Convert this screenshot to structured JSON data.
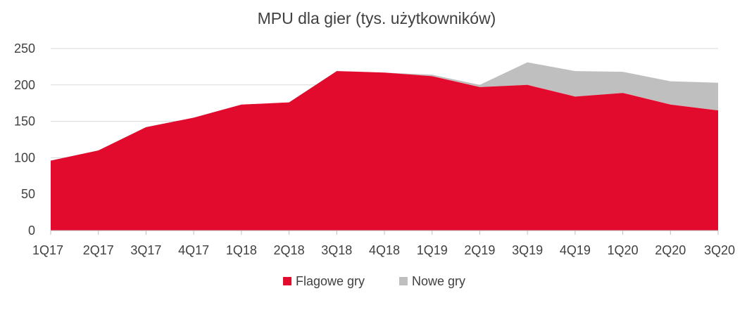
{
  "chart_data": {
    "type": "area",
    "stacked": true,
    "title": "MPU dla gier (tys. użytkowników)",
    "xlabel": "",
    "ylabel": "",
    "categories": [
      "1Q17",
      "2Q17",
      "3Q17",
      "4Q17",
      "1Q18",
      "2Q18",
      "3Q18",
      "4Q18",
      "1Q19",
      "2Q19",
      "3Q19",
      "4Q19",
      "1Q20",
      "2Q20",
      "3Q20"
    ],
    "ylim": [
      0,
      250
    ],
    "yticks": [
      "0",
      "50",
      "100",
      "150",
      "200",
      "250"
    ],
    "grid": true,
    "legend_position": "bottom",
    "series": [
      {
        "name": "Flagowe gry",
        "color": "#e30b2d",
        "values": [
          96,
          110,
          142,
          155,
          173,
          176,
          219,
          217,
          212,
          197,
          200,
          184,
          189,
          173,
          165
        ]
      },
      {
        "name": "Nowe gry",
        "color": "#bfbfbf",
        "values": [
          0,
          0,
          0,
          0,
          0,
          0,
          0,
          0,
          2,
          3,
          31,
          35,
          29,
          32,
          38
        ]
      }
    ]
  }
}
